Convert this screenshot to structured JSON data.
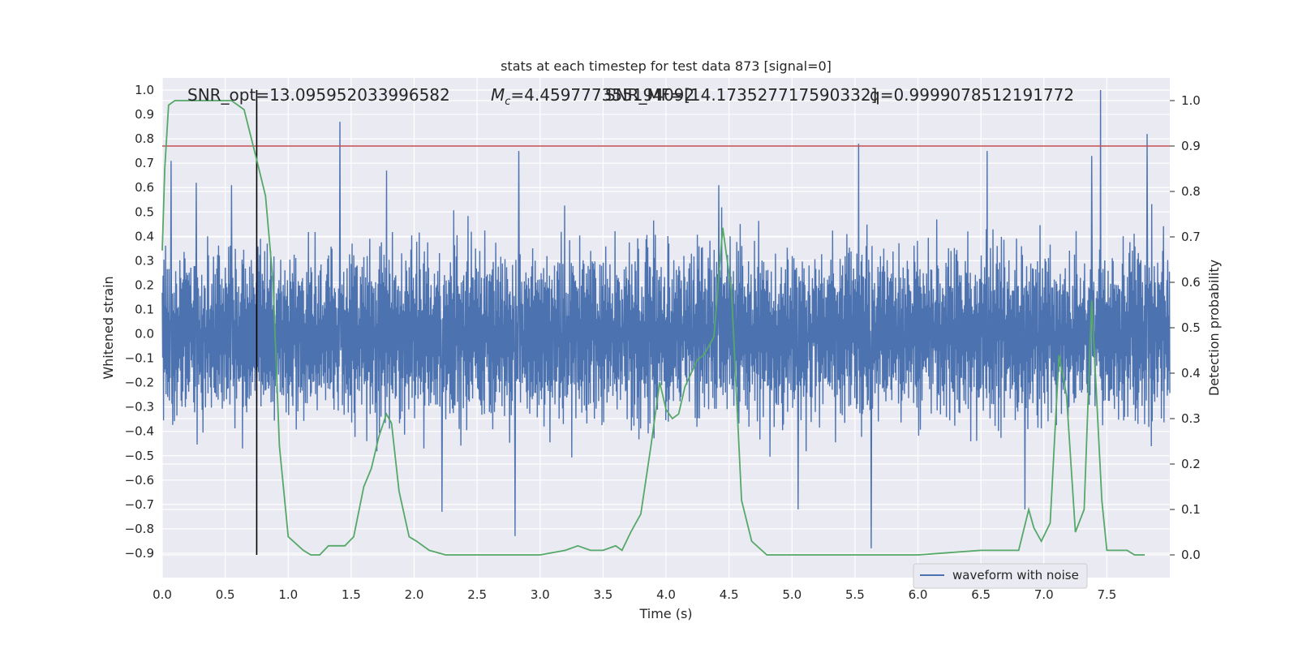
{
  "chart_data": {
    "type": "line",
    "title": "stats at each timestep for test data 873 [signal=0]",
    "xlabel": "Time (s)",
    "ylabel": "Whitened strain",
    "y2label": "Detection probability",
    "xlim": [
      0.0,
      8.0
    ],
    "ylim": [
      -1.0,
      1.05
    ],
    "y2lim": [
      -0.05,
      1.05
    ],
    "xticks": [
      "0.0",
      "0.5",
      "1.0",
      "1.5",
      "2.0",
      "2.5",
      "3.0",
      "3.5",
      "4.0",
      "4.5",
      "5.0",
      "5.5",
      "6.0",
      "6.5",
      "7.0",
      "7.5"
    ],
    "yticks": [
      "1.0",
      "0.9",
      "0.8",
      "0.7",
      "0.6",
      "0.5",
      "0.4",
      "0.3",
      "0.2",
      "0.1",
      "0.0",
      "−0.1",
      "−0.2",
      "−0.3",
      "−0.4",
      "−0.5",
      "−0.6",
      "−0.7",
      "−0.8",
      "−0.9"
    ],
    "y2ticks": [
      "1.0",
      "0.9",
      "0.8",
      "0.7",
      "0.6",
      "0.5",
      "0.4",
      "0.3",
      "0.2",
      "0.1",
      "0.0"
    ],
    "grid": true,
    "legend_placement": "lower-right",
    "annotations": {
      "snr_opt": "SNR_opt=13.095952033996582",
      "mc": "=4.459777355194092",
      "mc_symbol": "M",
      "mc_sub": "c",
      "snr_mf": "SNR_MF=[14.173527717590332]",
      "q": "q=0.9999078512191772"
    },
    "threshold": {
      "value": 0.9,
      "axis": "y2",
      "color": "#c44e52"
    },
    "marker_time": 0.75,
    "series": [
      {
        "name": "waveform with noise",
        "axis": "y",
        "color": "#4c72b0",
        "kind": "noise",
        "envelope_peaks": [
          [
            0.07,
            0.71
          ],
          [
            0.27,
            0.62
          ],
          [
            0.55,
            0.61
          ],
          [
            1.41,
            0.87
          ],
          [
            1.78,
            0.67
          ],
          [
            2.83,
            0.75
          ],
          [
            4.42,
            0.61
          ],
          [
            5.05,
            0.78
          ],
          [
            5.53,
            0.78
          ],
          [
            6.55,
            0.75
          ],
          [
            7.38,
            0.73
          ],
          [
            7.45,
            1.0
          ],
          [
            7.82,
            0.82
          ],
          [
            2.8,
            -0.83
          ],
          [
            5.63,
            -0.88
          ],
          [
            2.22,
            -0.73
          ],
          [
            5.05,
            -0.72
          ],
          [
            6.85,
            -0.72
          ]
        ]
      },
      {
        "name": "Detection probability",
        "axis": "y2",
        "color": "#55a868",
        "x": [
          0.0,
          0.02,
          0.05,
          0.1,
          0.2,
          0.4,
          0.55,
          0.65,
          0.75,
          0.82,
          0.88,
          0.93,
          1.0,
          1.12,
          1.18,
          1.25,
          1.32,
          1.38,
          1.45,
          1.52,
          1.6,
          1.66,
          1.72,
          1.78,
          1.82,
          1.88,
          1.96,
          2.02,
          2.12,
          2.25,
          2.5,
          3.0,
          3.2,
          3.3,
          3.4,
          3.5,
          3.6,
          3.65,
          3.72,
          3.8,
          3.88,
          3.95,
          4.0,
          4.05,
          4.1,
          4.15,
          4.25,
          4.3,
          4.38,
          4.45,
          4.52,
          4.6,
          4.68,
          4.8,
          5.0,
          5.5,
          6.0,
          6.5,
          6.65,
          6.8,
          6.88,
          6.92,
          6.98,
          7.05,
          7.12,
          7.18,
          7.25,
          7.32,
          7.38,
          7.46,
          7.5,
          7.58,
          7.66,
          7.72,
          7.8
        ],
        "y": [
          0.67,
          0.85,
          0.99,
          1.0,
          1.0,
          1.0,
          1.0,
          0.98,
          0.87,
          0.79,
          0.6,
          0.24,
          0.04,
          0.01,
          0.0,
          0.0,
          0.02,
          0.02,
          0.02,
          0.04,
          0.15,
          0.19,
          0.26,
          0.31,
          0.29,
          0.14,
          0.04,
          0.03,
          0.01,
          0.0,
          0.0,
          0.0,
          0.01,
          0.02,
          0.01,
          0.01,
          0.02,
          0.01,
          0.05,
          0.09,
          0.24,
          0.38,
          0.32,
          0.3,
          0.31,
          0.37,
          0.43,
          0.44,
          0.48,
          0.72,
          0.58,
          0.12,
          0.03,
          0.0,
          0.0,
          0.0,
          0.0,
          0.01,
          0.01,
          0.01,
          0.1,
          0.06,
          0.03,
          0.07,
          0.44,
          0.35,
          0.05,
          0.1,
          0.56,
          0.12,
          0.01,
          0.01,
          0.01,
          0.0,
          0.0
        ]
      }
    ]
  }
}
